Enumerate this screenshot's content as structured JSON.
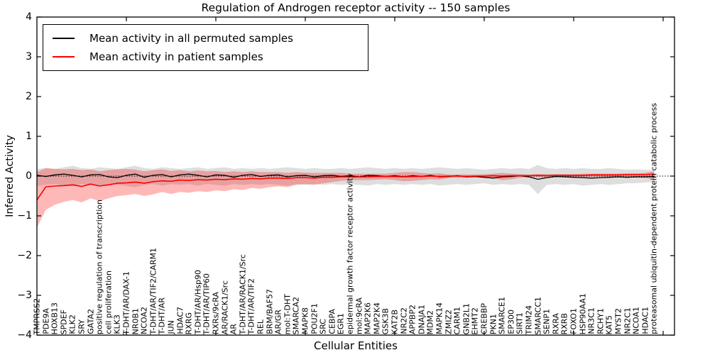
{
  "chart_data": {
    "type": "line",
    "title": "Regulation of Androgen receptor activity -- 150 samples",
    "xlabel": "Cellular Entities",
    "ylabel": "Inferred Activity",
    "ylim": [
      -4,
      4
    ],
    "grid": false,
    "zero_line": "dotted",
    "ytick_values": [
      4,
      3,
      2,
      1,
      0,
      -1,
      -2,
      -3,
      -4
    ],
    "ytick_labels": [
      "4",
      "3",
      "2",
      "1",
      "0",
      "−1",
      "−2",
      "−3",
      "−4"
    ],
    "xtick_every": 10,
    "legend": {
      "position": "upper left",
      "entries": [
        {
          "label": "Mean activity in all permuted samples",
          "color": "#000000"
        },
        {
          "label": "Mean activity in patient samples",
          "color": "#ff0000"
        }
      ]
    },
    "categories": [
      "TMPRSS2",
      "PDE9A",
      "HOXB13",
      "SPDEF",
      "KLK2",
      "SRY",
      "GATA2",
      "positive regulation of transcription",
      "cell proliferation",
      "KLK3",
      "T-DHT/AR/DAX-1",
      "NR0B1",
      "NCOA2",
      "T-DHT/AR/TIF2/CARM1",
      "T-DHT/AR",
      "JUN",
      "HDAC7",
      "RXRG",
      "T-DHT/AR/Hsp90",
      "T-DHT/AR/TIP60",
      "RXRs/9cRA",
      "AR/RACK1/Src",
      "AR",
      "T-DHT/AR/RACK1/Src",
      "T-DHT/AR/TIF2",
      "REL",
      "BRM/BAF57",
      "AR/GR",
      "mol:T-DHT",
      "SMARCA2",
      "MAPK8",
      "POU2F1",
      "SRC",
      "CEBPA",
      "EGR1",
      "epidermal growth factor receptor activity",
      "mol:9cRA",
      "MAP2K6",
      "MAP2K4",
      "GSK3B",
      "KAT2B",
      "NR2C2",
      "APPBP2",
      "DNAJA1",
      "MDM2",
      "MAPK14",
      "ZMIZ2",
      "CARM1",
      "GNB2L1",
      "EHMT2",
      "CREBBP",
      "PKN1",
      "SMARCE1",
      "EP300",
      "SIRT1",
      "TRIM24",
      "SMARCC1",
      "SENP1",
      "RXRA",
      "RXRB",
      "FOXO1",
      "HSP90AA1",
      "NR3C1",
      "RCHY1",
      "KAT5",
      "MYST2",
      "NR2C1",
      "NCOA1",
      "HDAC1",
      "proteasomal ubiquitin-dependent protein catabolic process"
    ],
    "series": [
      {
        "name": "Mean activity in all permuted samples",
        "color": "#000000",
        "band_fill": "rgba(0,0,0,0.13)",
        "values": [
          0.02,
          -0.01,
          0.03,
          0.05,
          0.02,
          -0.02,
          0.03,
          0.04,
          -0.02,
          -0.04,
          0.02,
          0.05,
          -0.03,
          0.02,
          0.04,
          -0.02,
          0.03,
          0.05,
          0.02,
          -0.02,
          0.03,
          0.02,
          -0.03,
          0.02,
          0.04,
          -0.01,
          0.02,
          0.03,
          -0.02,
          0.01,
          0.02,
          -0.02,
          0.01,
          0.02,
          -0.01,
          0.01,
          -0.02,
          0.02,
          0.01,
          -0.01,
          0.01,
          -0.02,
          0.01,
          -0.01,
          0.02,
          -0.02,
          -0.01,
          0.01,
          -0.02,
          -0.01,
          -0.03,
          -0.05,
          -0.02,
          -0.01,
          0.01,
          -0.02,
          -0.08,
          -0.04,
          -0.01,
          -0.02,
          -0.03,
          -0.04,
          -0.05,
          -0.04,
          -0.03,
          -0.02,
          -0.03,
          -0.02,
          -0.02,
          -0.01
        ],
        "band_upper": [
          0.18,
          0.2,
          0.18,
          0.22,
          0.26,
          0.2,
          0.18,
          0.22,
          0.2,
          0.18,
          0.22,
          0.26,
          0.2,
          0.18,
          0.22,
          0.2,
          0.18,
          0.2,
          0.22,
          0.18,
          0.2,
          0.22,
          0.18,
          0.2,
          0.18,
          0.2,
          0.18,
          0.2,
          0.22,
          0.2,
          0.18,
          0.2,
          0.18,
          0.18,
          0.2,
          0.18,
          0.2,
          0.22,
          0.2,
          0.18,
          0.2,
          0.18,
          0.2,
          0.18,
          0.2,
          0.22,
          0.2,
          0.18,
          0.2,
          0.18,
          0.16,
          0.18,
          0.2,
          0.18,
          0.2,
          0.18,
          0.28,
          0.2,
          0.18,
          0.2,
          0.18,
          0.2,
          0.18,
          0.18,
          0.2,
          0.18,
          0.16,
          0.17,
          0.16,
          0.15
        ],
        "band_lower": [
          -0.25,
          -0.22,
          -0.2,
          -0.24,
          -0.26,
          -0.2,
          -0.22,
          -0.25,
          -0.2,
          -0.22,
          -0.25,
          -0.28,
          -0.22,
          -0.2,
          -0.24,
          -0.2,
          -0.22,
          -0.2,
          -0.24,
          -0.2,
          -0.22,
          -0.24,
          -0.2,
          -0.22,
          -0.2,
          -0.22,
          -0.2,
          -0.22,
          -0.24,
          -0.2,
          -0.22,
          -0.2,
          -0.22,
          -0.2,
          -0.22,
          -0.2,
          -0.22,
          -0.24,
          -0.2,
          -0.22,
          -0.2,
          -0.22,
          -0.2,
          -0.22,
          -0.2,
          -0.24,
          -0.22,
          -0.2,
          -0.22,
          -0.2,
          -0.18,
          -0.22,
          -0.2,
          -0.22,
          -0.2,
          -0.22,
          -0.45,
          -0.22,
          -0.2,
          -0.22,
          -0.2,
          -0.24,
          -0.22,
          -0.2,
          -0.22,
          -0.2,
          -0.18,
          -0.18,
          -0.16,
          -0.15
        ]
      },
      {
        "name": "Mean activity in patient samples",
        "color": "#ff0000",
        "band_fill": "rgba(255,0,0,0.28)",
        "values": [
          -0.6,
          -0.27,
          -0.25,
          -0.24,
          -0.22,
          -0.26,
          -0.2,
          -0.25,
          -0.22,
          -0.18,
          -0.17,
          -0.15,
          -0.18,
          -0.14,
          -0.12,
          -0.13,
          -0.1,
          -0.11,
          -0.09,
          -0.1,
          -0.08,
          -0.09,
          -0.07,
          -0.08,
          -0.06,
          -0.07,
          -0.05,
          -0.05,
          -0.06,
          -0.04,
          -0.04,
          -0.05,
          -0.03,
          -0.03,
          -0.02,
          -0.02,
          -0.02,
          -0.02,
          -0.01,
          -0.01,
          -0.01,
          -0.02,
          -0.01,
          -0.01,
          0.0,
          -0.01,
          0.0,
          0.0,
          -0.01,
          0.0,
          0.0,
          0.01,
          0.0,
          0.01,
          0.01,
          0.01,
          0.02,
          0.01,
          0.02,
          0.02,
          0.02,
          0.02,
          0.03,
          0.03,
          0.03,
          0.03,
          0.04,
          0.04,
          0.04,
          0.05
        ],
        "band_upper": [
          0.1,
          0.2,
          0.18,
          0.17,
          0.18,
          0.15,
          0.17,
          0.12,
          0.15,
          0.17,
          0.18,
          0.16,
          0.12,
          0.15,
          0.17,
          0.13,
          0.15,
          0.12,
          0.14,
          0.12,
          0.13,
          0.1,
          0.12,
          0.1,
          0.12,
          0.1,
          0.1,
          0.1,
          0.08,
          0.1,
          0.09,
          0.08,
          0.08,
          0.08,
          0.08,
          0.06,
          0.06,
          0.06,
          0.06,
          0.06,
          0.08,
          0.1,
          0.1,
          0.08,
          0.06,
          0.07,
          0.04,
          0.04,
          0.04,
          0.04,
          0.05,
          0.06,
          0.08,
          0.06,
          0.05,
          0.04,
          0.05,
          0.05,
          0.05,
          0.05,
          0.05,
          0.06,
          0.06,
          0.06,
          0.06,
          0.06,
          0.07,
          0.07,
          0.08,
          0.12
        ],
        "band_lower": [
          -1.3,
          -0.85,
          -0.72,
          -0.65,
          -0.6,
          -0.66,
          -0.56,
          -0.63,
          -0.56,
          -0.5,
          -0.48,
          -0.45,
          -0.5,
          -0.46,
          -0.4,
          -0.45,
          -0.4,
          -0.42,
          -0.38,
          -0.4,
          -0.36,
          -0.38,
          -0.33,
          -0.35,
          -0.3,
          -0.32,
          -0.28,
          -0.26,
          -0.28,
          -0.22,
          -0.2,
          -0.22,
          -0.18,
          -0.15,
          -0.12,
          -0.1,
          -0.1,
          -0.1,
          -0.09,
          -0.08,
          -0.1,
          -0.13,
          -0.12,
          -0.1,
          -0.08,
          -0.09,
          -0.05,
          -0.04,
          -0.04,
          -0.03,
          -0.04,
          -0.05,
          -0.1,
          -0.08,
          -0.04,
          -0.03,
          -0.03,
          -0.04,
          -0.03,
          -0.02,
          -0.02,
          -0.03,
          -0.02,
          -0.02,
          -0.02,
          -0.02,
          -0.03,
          -0.04,
          -0.05,
          -0.08
        ]
      }
    ]
  }
}
